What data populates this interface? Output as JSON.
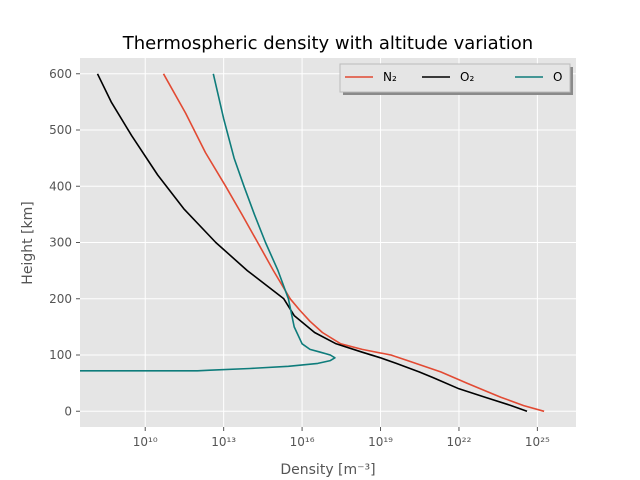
{
  "chart_data": {
    "type": "line",
    "title": "Thermospheric density with altitude variation",
    "xlabel": "Density [m⁻³]",
    "ylabel": "Height [km]",
    "xscale": "log",
    "xlim": [
      32000000.0,
      3e+26
    ],
    "ylim": [
      -28,
      628
    ],
    "grid": true,
    "legend_location": "top-right",
    "x_ticks": [
      10000000000.0,
      10000000000000.0,
      1e+16,
      1e+19,
      1e+22,
      1e+25
    ],
    "x_tick_labels": [
      "10¹⁰",
      "10¹³",
      "10¹⁶",
      "10¹⁹",
      "10²²",
      "10²⁵"
    ],
    "y_ticks": [
      0,
      100,
      200,
      300,
      400,
      500,
      600
    ],
    "y_tick_labels": [
      "0",
      "100",
      "200",
      "300",
      "400",
      "500",
      "600"
    ],
    "series": [
      {
        "name": "N₂",
        "color": "#e24a33",
        "points": [
          [
            1.8e+25,
            0
          ],
          [
            3e+24,
            10
          ],
          [
            4e+23,
            25
          ],
          [
            1.2e+23,
            35
          ],
          [
            2e+22,
            50
          ],
          [
            2e+21,
            70
          ],
          [
            1.1e+20,
            90
          ],
          [
            2.5e+19,
            100
          ],
          [
            2e+18,
            110
          ],
          [
            3e+17,
            120
          ],
          [
            6e+16,
            140
          ],
          [
            2e+16,
            160
          ],
          [
            8000000000000000.0,
            180
          ],
          [
            3500000000000000.0,
            200
          ],
          [
            800000000000000.0,
            250
          ],
          [
            200000000000000.0,
            300
          ],
          [
            50000000000000.0,
            350
          ],
          [
            12000000000000.0,
            400
          ],
          [
            2000000000000.0,
            460
          ],
          [
            350000000000.0,
            530
          ],
          [
            50000000000.0,
            600
          ]
        ]
      },
      {
        "name": "O₂",
        "color": "#000000",
        "points": [
          [
            4e+24,
            0
          ],
          [
            1e+24,
            10
          ],
          [
            1e+23,
            25
          ],
          [
            1e+22,
            40
          ],
          [
            1e+21,
            60
          ],
          [
            3e+20,
            70
          ],
          [
            4e+19,
            85
          ],
          [
            1e+19,
            95
          ],
          [
            2e+18,
            105
          ],
          [
            2e+17,
            120
          ],
          [
            3e+16,
            140
          ],
          [
            5000000000000000.0,
            170
          ],
          [
            2000000000000000.0,
            200
          ],
          [
            80000000000000.0,
            250
          ],
          [
            5000000000000.0,
            300
          ],
          [
            300000000000.0,
            360
          ],
          [
            30000000000.0,
            420
          ],
          [
            3000000000.0,
            490
          ],
          [
            500000000.0,
            550
          ],
          [
            150000000.0,
            600
          ]
        ]
      },
      {
        "name": "O",
        "color": "#0e7c7b",
        "points": [
          [
            32000000.0,
            72
          ],
          [
            1000000000000.0,
            72
          ],
          [
            3000000000000.0,
            73
          ],
          [
            100000000000000.0,
            76
          ],
          [
            3000000000000000.0,
            80
          ],
          [
            4e+16,
            85
          ],
          [
            1.2e+17,
            90
          ],
          [
            1.8e+17,
            95
          ],
          [
            1.2e+17,
            100
          ],
          [
            5e+16,
            105
          ],
          [
            2e+16,
            110
          ],
          [
            1e+16,
            120
          ],
          [
            5000000000000000.0,
            150
          ],
          [
            3000000000000000.0,
            200
          ],
          [
            1200000000000000.0,
            250
          ],
          [
            400000000000000.0,
            300
          ],
          [
            150000000000000.0,
            350
          ],
          [
            60000000000000.0,
            400
          ],
          [
            25000000000000.0,
            450
          ],
          [
            10000000000000.0,
            520
          ],
          [
            4000000000000.0,
            600
          ]
        ]
      }
    ]
  }
}
